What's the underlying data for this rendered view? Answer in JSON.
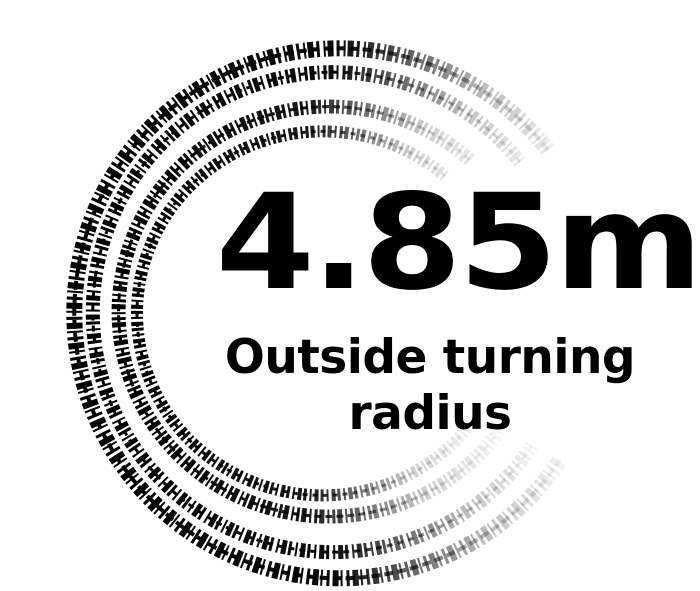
{
  "stat": {
    "value": "4.85m",
    "label_line1": "Outside turning",
    "label_line2": "radius"
  },
  "graphic": {
    "icon": "tire-tracks-icon",
    "ink_color": "#000000",
    "background_color": "#ffffff"
  }
}
